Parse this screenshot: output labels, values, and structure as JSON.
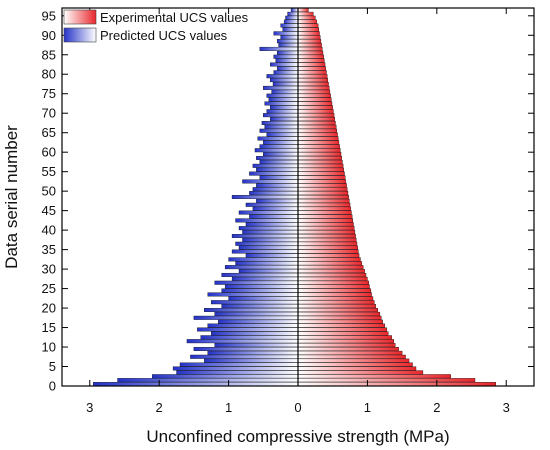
{
  "chart_data": {
    "type": "bar",
    "orientation": "horizontal",
    "xlabel": "Unconfined compressive strength (MPa)",
    "ylabel": "Data serial number",
    "xlim": [
      -3.4,
      3.4
    ],
    "ylim": [
      0,
      97
    ],
    "x_ticks": [
      -3,
      -2,
      -1,
      0,
      1,
      2,
      3
    ],
    "x_tick_labels": [
      "3",
      "2",
      "1",
      "0",
      "1",
      "2",
      "3"
    ],
    "y_ticks": [
      0,
      5,
      10,
      15,
      20,
      25,
      30,
      35,
      40,
      45,
      50,
      55,
      60,
      65,
      70,
      75,
      80,
      85,
      90,
      95
    ],
    "legend_position": "top-left",
    "grid": false,
    "colors": {
      "experimental": "#e8262b",
      "predicted": "#2433c8",
      "axis": "#000000"
    },
    "series": [
      {
        "name": "Experimental UCS values",
        "side": "right",
        "values": [
          2.85,
          2.55,
          2.2,
          1.8,
          1.7,
          1.65,
          1.6,
          1.55,
          1.5,
          1.45,
          1.4,
          1.38,
          1.35,
          1.3,
          1.28,
          1.25,
          1.22,
          1.2,
          1.18,
          1.15,
          1.12,
          1.1,
          1.08,
          1.06,
          1.05,
          1.03,
          1.02,
          1.0,
          0.98,
          0.96,
          0.94,
          0.92,
          0.9,
          0.88,
          0.87,
          0.86,
          0.85,
          0.84,
          0.83,
          0.82,
          0.81,
          0.8,
          0.79,
          0.78,
          0.77,
          0.76,
          0.75,
          0.74,
          0.73,
          0.72,
          0.71,
          0.7,
          0.69,
          0.68,
          0.67,
          0.66,
          0.65,
          0.64,
          0.63,
          0.62,
          0.61,
          0.6,
          0.59,
          0.58,
          0.57,
          0.56,
          0.55,
          0.54,
          0.53,
          0.52,
          0.51,
          0.5,
          0.49,
          0.48,
          0.47,
          0.46,
          0.45,
          0.44,
          0.43,
          0.42,
          0.41,
          0.4,
          0.39,
          0.38,
          0.37,
          0.36,
          0.35,
          0.34,
          0.33,
          0.32,
          0.31,
          0.3,
          0.29,
          0.27,
          0.25,
          0.22,
          0.15
        ]
      },
      {
        "name": "Predicted UCS values",
        "side": "left",
        "values": [
          2.95,
          2.6,
          2.1,
          1.75,
          1.8,
          1.7,
          1.35,
          1.55,
          1.3,
          1.5,
          1.2,
          1.6,
          1.4,
          1.25,
          1.45,
          1.3,
          1.15,
          1.5,
          1.2,
          1.35,
          1.1,
          1.25,
          1.0,
          1.3,
          1.1,
          1.05,
          1.2,
          0.95,
          1.1,
          0.85,
          1.05,
          0.9,
          1.0,
          0.75,
          0.95,
          0.85,
          0.9,
          0.8,
          0.95,
          0.8,
          0.85,
          0.75,
          0.9,
          0.7,
          0.85,
          0.65,
          0.75,
          0.6,
          0.95,
          0.7,
          0.65,
          0.6,
          0.8,
          0.55,
          0.7,
          0.6,
          0.65,
          0.55,
          0.6,
          0.5,
          0.62,
          0.55,
          0.5,
          0.58,
          0.45,
          0.55,
          0.48,
          0.52,
          0.4,
          0.5,
          0.45,
          0.4,
          0.48,
          0.42,
          0.45,
          0.38,
          0.5,
          0.36,
          0.4,
          0.45,
          0.35,
          0.3,
          0.4,
          0.32,
          0.35,
          0.3,
          0.55,
          0.28,
          0.3,
          0.25,
          0.35,
          0.22,
          0.25,
          0.2,
          0.18,
          0.15,
          0.1
        ]
      }
    ]
  }
}
